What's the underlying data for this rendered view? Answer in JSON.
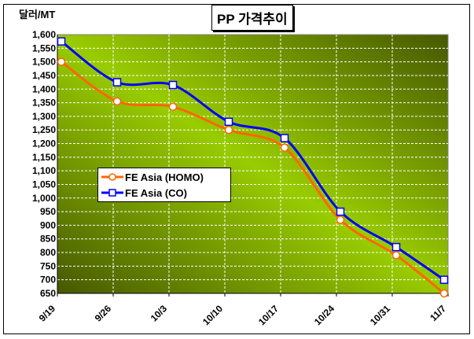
{
  "chart_data": {
    "type": "line",
    "title": "PP 가격추이",
    "ylabel": "달러/MT",
    "xlabel": "",
    "categories": [
      "9/19",
      "9/26",
      "10/3",
      "10/10",
      "10/17",
      "10/24",
      "10/31",
      "11/7"
    ],
    "ylim": [
      650,
      1600
    ],
    "ytick_step": 50,
    "yticks": [
      "650",
      "700",
      "750",
      "800",
      "850",
      "900",
      "950",
      "1,000",
      "1,050",
      "1,100",
      "1,150",
      "1,200",
      "1,250",
      "1,300",
      "1,350",
      "1,400",
      "1,450",
      "1,500",
      "1,550",
      "1,600"
    ],
    "grid": true,
    "legend_position": "center-left",
    "series": [
      {
        "name": "FE Asia (HOMO)",
        "color": "#ff6600",
        "marker": "circle",
        "values": [
          1500,
          1355,
          1335,
          1250,
          1185,
          920,
          790,
          650
        ]
      },
      {
        "name": "FE Asia (CO)",
        "color": "#0000ff",
        "marker": "square",
        "values": [
          1575,
          1425,
          1415,
          1280,
          1220,
          950,
          820,
          700
        ]
      }
    ]
  }
}
